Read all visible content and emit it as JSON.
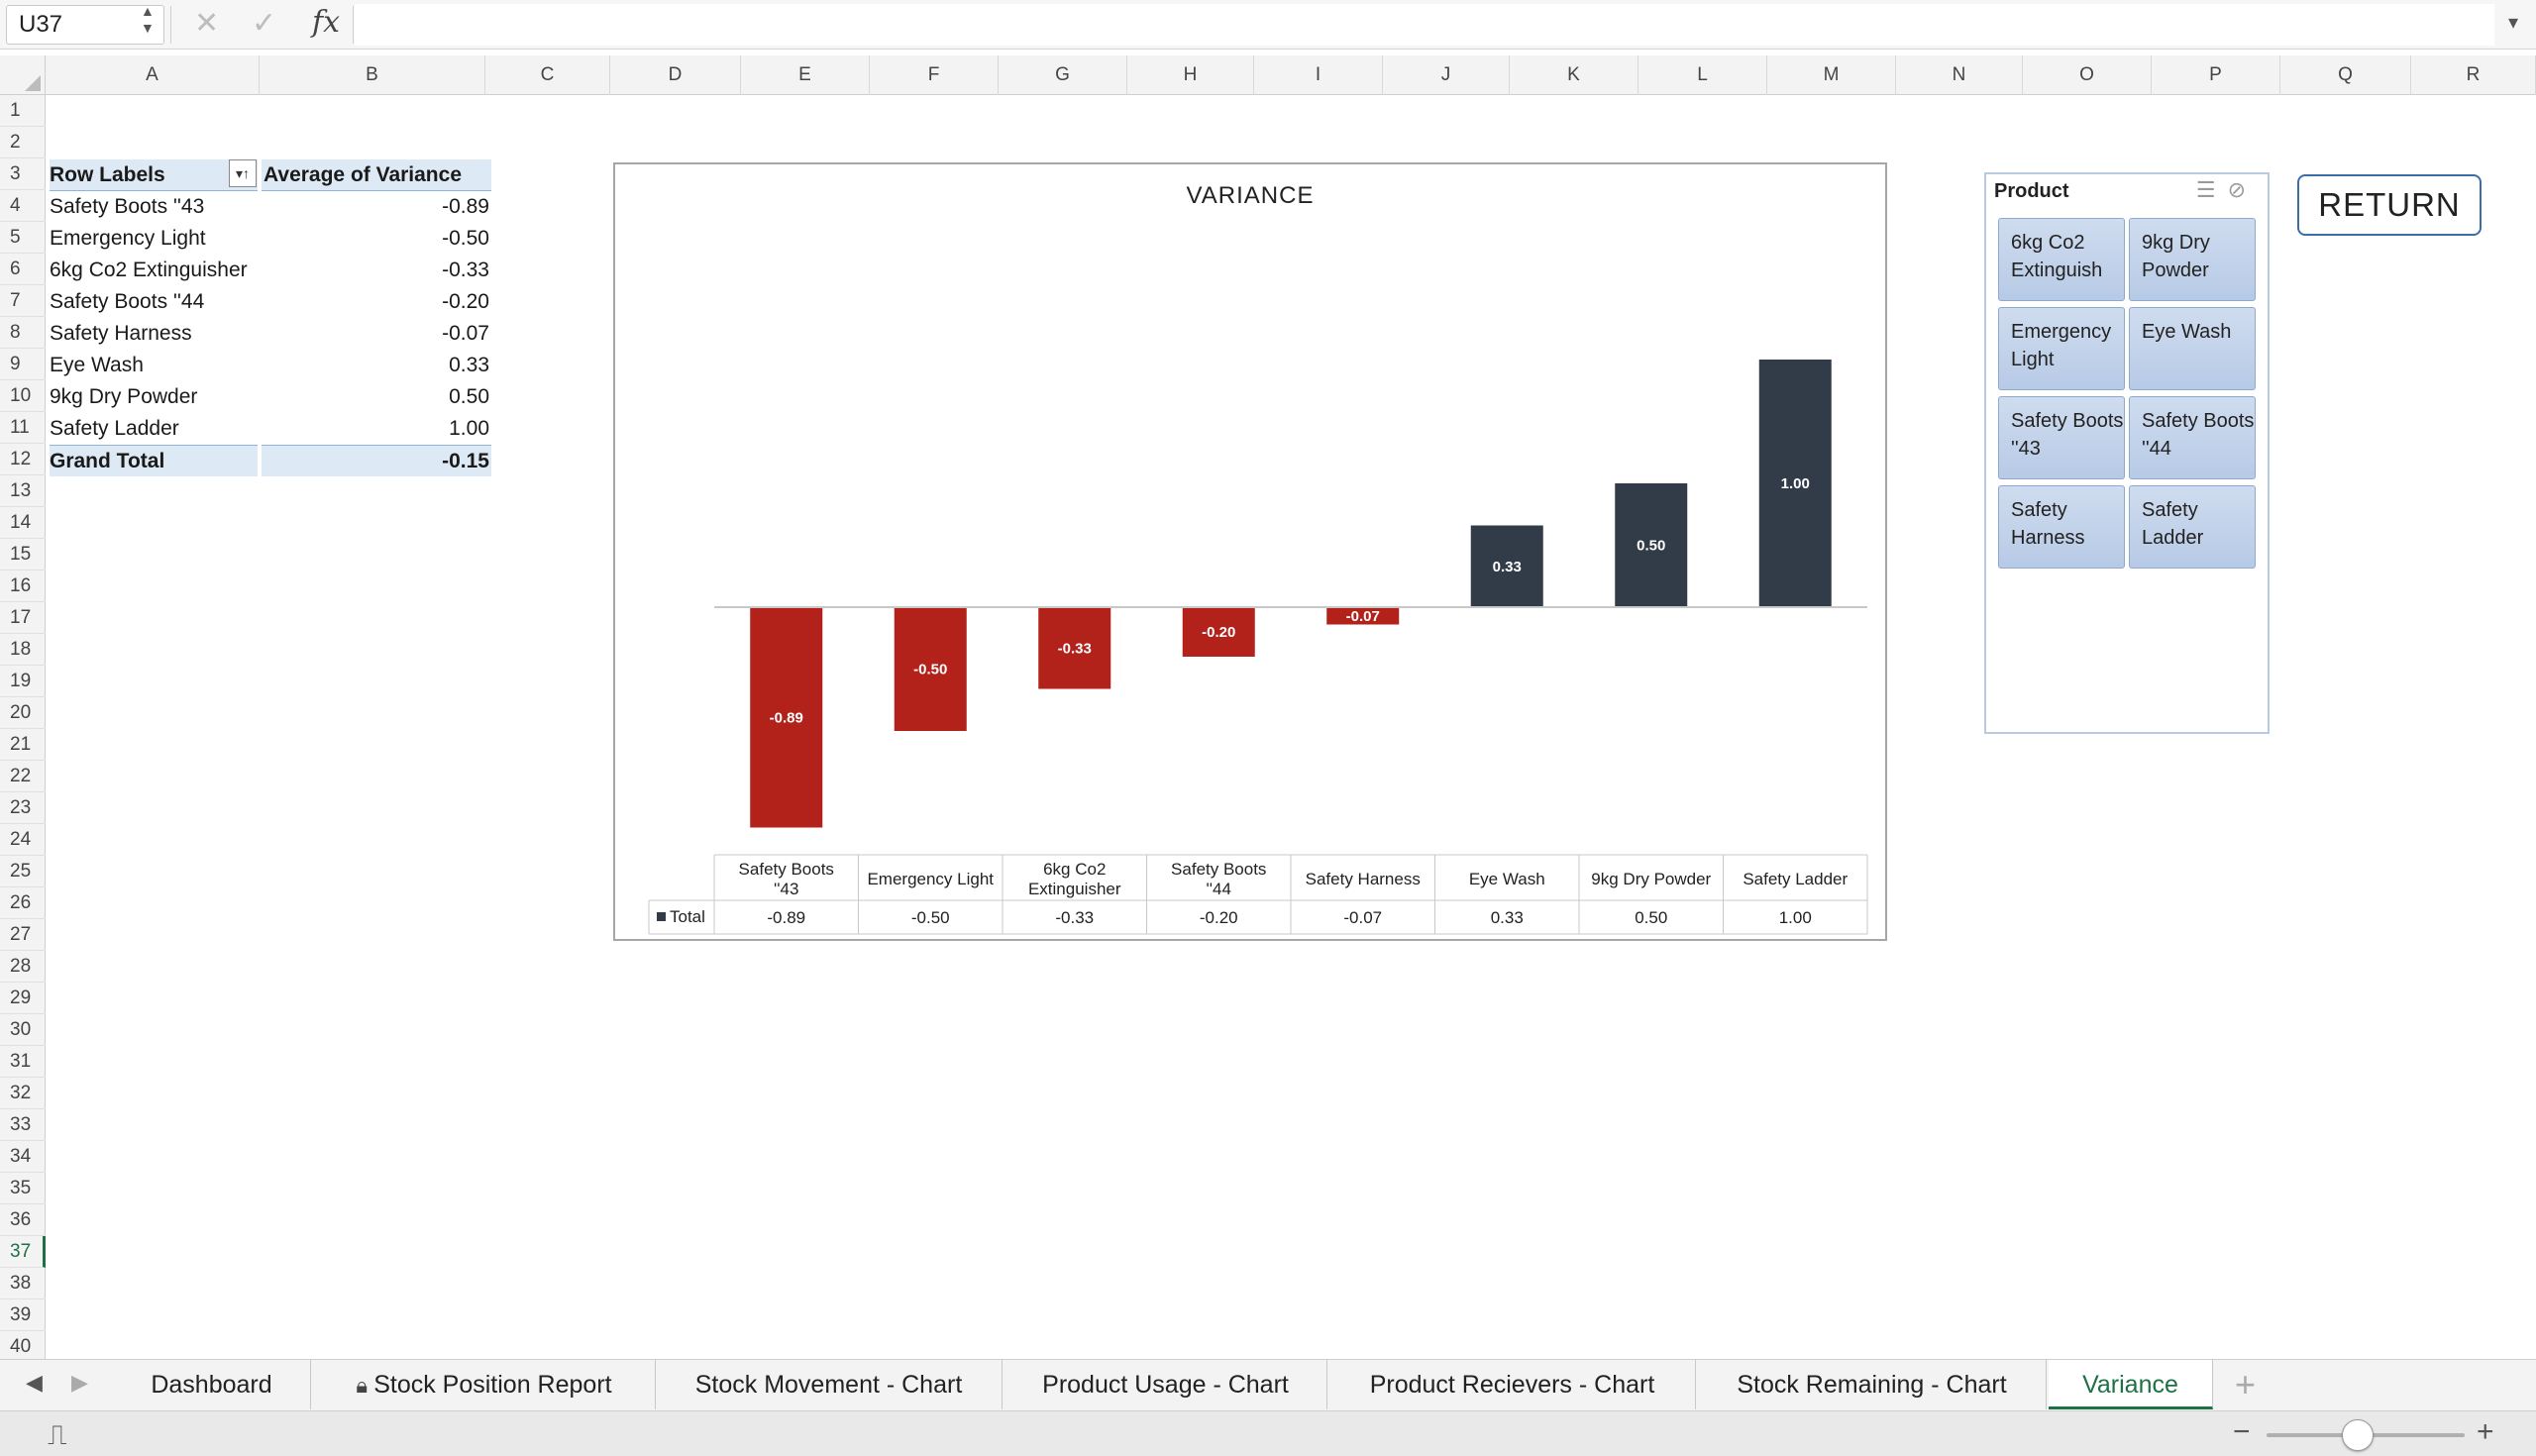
{
  "formula_bar": {
    "name_box": "U37",
    "fx_label": "fx",
    "formula": ""
  },
  "columns": [
    "A",
    "B",
    "C",
    "D",
    "E",
    "F",
    "G",
    "H",
    "I",
    "J",
    "K",
    "L",
    "M",
    "N",
    "O",
    "P",
    "Q",
    "R"
  ],
  "rows": [
    "1",
    "2",
    "3",
    "4",
    "5",
    "6",
    "7",
    "8",
    "9",
    "10",
    "11",
    "12",
    "13",
    "14",
    "15",
    "16",
    "17",
    "18",
    "19",
    "20",
    "21",
    "22",
    "23",
    "24",
    "25",
    "26",
    "27",
    "28",
    "29",
    "30",
    "31",
    "32",
    "33",
    "34",
    "35",
    "36",
    "37",
    "38",
    "39",
    "40"
  ],
  "active_row": "37",
  "pivot": {
    "header_label": "Row Labels",
    "header_value": "Average of Variance",
    "rows": [
      {
        "label": "Safety Boots ''43",
        "value": "-0.89"
      },
      {
        "label": "Emergency Light",
        "value": "-0.50"
      },
      {
        "label": "6kg Co2 Extinguisher",
        "value": "-0.33"
      },
      {
        "label": "Safety Boots ''44",
        "value": "-0.20"
      },
      {
        "label": "Safety Harness",
        "value": "-0.07"
      },
      {
        "label": "Eye Wash",
        "value": "0.33"
      },
      {
        "label": "9kg Dry Powder",
        "value": "0.50"
      },
      {
        "label": "Safety Ladder",
        "value": "1.00"
      }
    ],
    "total_label": "Grand Total",
    "total_value": "-0.15"
  },
  "chart_data": {
    "type": "bar",
    "title": "VARIANCE",
    "categories": [
      "Safety Boots ''43",
      "Emergency Light",
      "6kg Co2 Extinguisher",
      "Safety Boots ''44",
      "Safety Harness",
      "Eye Wash",
      "9kg Dry Powder",
      "Safety Ladder"
    ],
    "series": [
      {
        "name": "Total",
        "values": [
          -0.89,
          -0.5,
          -0.33,
          -0.2,
          -0.07,
          0.33,
          0.5,
          1.0
        ]
      }
    ],
    "value_labels": [
      "-0.89",
      "-0.50",
      "-0.33",
      "-0.20",
      "-0.07",
      "0.33",
      "0.50",
      "1.00"
    ],
    "data_table": true,
    "colors": {
      "negative": "#b3211b",
      "positive": "#323b48"
    }
  },
  "slicer": {
    "title": "Product",
    "items": [
      "6kg Co2 Extinguish",
      "9kg Dry Powder",
      "Emergency Light",
      "Eye Wash",
      "Safety Boots ''43",
      "Safety Boots ''44",
      "Safety Harness",
      "Safety Ladder"
    ]
  },
  "return_button": "RETURN",
  "sheet_tabs": [
    {
      "label": "Dashboard",
      "locked": false
    },
    {
      "label": "Stock Position Report",
      "locked": true
    },
    {
      "label": "Stock Movement - Chart",
      "locked": false
    },
    {
      "label": "Product Usage - Chart",
      "locked": false
    },
    {
      "label": "Product Recievers - Chart",
      "locked": false
    },
    {
      "label": "Stock Remaining - Chart",
      "locked": false
    },
    {
      "label": "Variance",
      "locked": false,
      "active": true
    }
  ],
  "zoom_level": 0.6
}
